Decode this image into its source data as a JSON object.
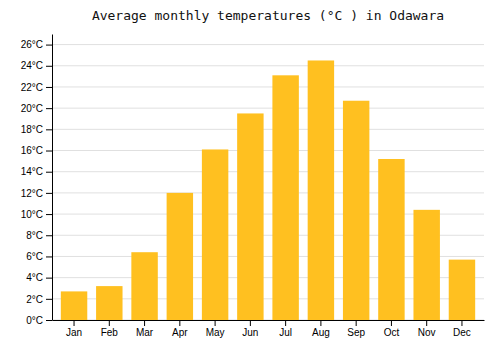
{
  "chart_data": {
    "type": "bar",
    "title": "Average monthly temperatures (°C ) in Odawara",
    "categories": [
      "Jan",
      "Feb",
      "Mar",
      "Apr",
      "May",
      "Jun",
      "Jul",
      "Aug",
      "Sep",
      "Oct",
      "Nov",
      "Dec"
    ],
    "values": [
      2.7,
      3.2,
      6.4,
      12.0,
      16.1,
      19.5,
      23.1,
      24.5,
      20.7,
      15.2,
      10.4,
      5.7
    ],
    "color": "#FFC020",
    "ylim": [
      0,
      27
    ],
    "yticks": [
      {
        "value": 0,
        "label": "0°C"
      },
      {
        "value": 2,
        "label": "2°C"
      },
      {
        "value": 4,
        "label": "4°C"
      },
      {
        "value": 6,
        "label": "6°C"
      },
      {
        "value": 8,
        "label": "8°C"
      },
      {
        "value": 10,
        "label": "10°C"
      },
      {
        "value": 12,
        "label": "12°C"
      },
      {
        "value": 14,
        "label": "14°C"
      },
      {
        "value": 16,
        "label": "16°C"
      },
      {
        "value": 18,
        "label": "18°C"
      },
      {
        "value": 20,
        "label": "20°C"
      },
      {
        "value": 22,
        "label": "22°C"
      },
      {
        "value": 24,
        "label": "24°C"
      },
      {
        "value": 26,
        "label": "26°C"
      }
    ],
    "grid": true
  }
}
